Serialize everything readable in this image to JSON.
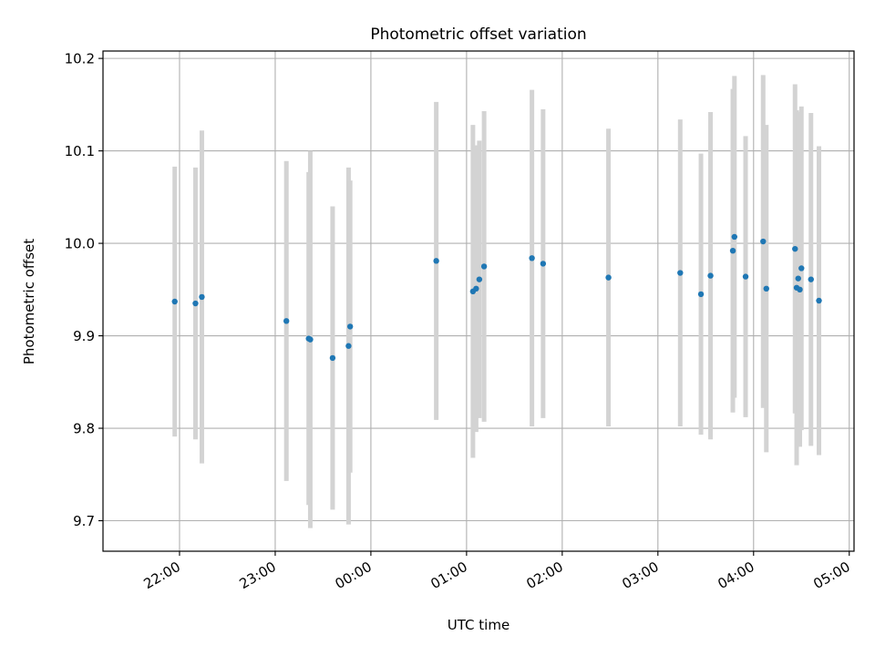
{
  "chart_data": {
    "type": "scatter",
    "title": "Photometric offset variation",
    "xlabel": "UTC time",
    "ylabel": "Photometric offset",
    "x_ticks": [
      {
        "x": "2000-01-01T22:00:00Z",
        "label": "22:00"
      },
      {
        "x": "2000-01-01T23:00:00Z",
        "label": "23:00"
      },
      {
        "x": "2000-01-02T00:00:00Z",
        "label": "00:00"
      },
      {
        "x": "2000-01-02T01:00:00Z",
        "label": "01:00"
      },
      {
        "x": "2000-01-02T02:00:00Z",
        "label": "02:00"
      },
      {
        "x": "2000-01-02T03:00:00Z",
        "label": "03:00"
      },
      {
        "x": "2000-01-02T04:00:00Z",
        "label": "04:00"
      },
      {
        "x": "2000-01-02T05:00:00Z",
        "label": "05:00"
      }
    ],
    "y_ticks": [
      {
        "y": 9.7,
        "label": "9.7"
      },
      {
        "y": 9.8,
        "label": "9.8"
      },
      {
        "y": 9.9,
        "label": "9.9"
      },
      {
        "y": 10.0,
        "label": "10.0"
      },
      {
        "y": 10.1,
        "label": "10.1"
      },
      {
        "y": 10.2,
        "label": "10.2"
      }
    ],
    "xlim": [
      "2000-01-01T21:12:00Z",
      "2000-01-02T05:03:00Z"
    ],
    "ylim": [
      9.667,
      10.208
    ],
    "grid": true,
    "point_color": "#1f77b4",
    "errorbar_color": "#d3d3d3",
    "points": [
      {
        "x": "2000-01-01T21:57:00Z",
        "y": 9.937,
        "err": 0.146
      },
      {
        "x": "2000-01-01T22:10:00Z",
        "y": 9.935,
        "err": 0.147
      },
      {
        "x": "2000-01-01T22:14:00Z",
        "y": 9.942,
        "err": 0.18
      },
      {
        "x": "2000-01-01T23:07:00Z",
        "y": 9.916,
        "err": 0.173
      },
      {
        "x": "2000-01-01T23:21:00Z",
        "y": 9.897,
        "err": 0.18
      },
      {
        "x": "2000-01-01T23:22:00Z",
        "y": 9.896,
        "err": 0.204
      },
      {
        "x": "2000-01-01T23:36:00Z",
        "y": 9.876,
        "err": 0.164
      },
      {
        "x": "2000-01-01T23:46:00Z",
        "y": 9.889,
        "err": 0.193
      },
      {
        "x": "2000-01-01T23:47:00Z",
        "y": 9.91,
        "err": 0.158
      },
      {
        "x": "2000-01-02T00:41:00Z",
        "y": 9.981,
        "err": 0.172
      },
      {
        "x": "2000-01-02T01:04:00Z",
        "y": 9.948,
        "err": 0.18
      },
      {
        "x": "2000-01-02T01:06:00Z",
        "y": 9.951,
        "err": 0.155
      },
      {
        "x": "2000-01-02T01:08:00Z",
        "y": 9.961,
        "err": 0.15
      },
      {
        "x": "2000-01-02T01:11:00Z",
        "y": 9.975,
        "err": 0.168
      },
      {
        "x": "2000-01-02T01:41:00Z",
        "y": 9.984,
        "err": 0.182
      },
      {
        "x": "2000-01-02T01:48:00Z",
        "y": 9.978,
        "err": 0.167
      },
      {
        "x": "2000-01-02T02:29:00Z",
        "y": 9.963,
        "err": 0.161
      },
      {
        "x": "2000-01-02T03:14:00Z",
        "y": 9.968,
        "err": 0.166
      },
      {
        "x": "2000-01-02T03:27:00Z",
        "y": 9.945,
        "err": 0.152
      },
      {
        "x": "2000-01-02T03:33:00Z",
        "y": 9.965,
        "err": 0.177
      },
      {
        "x": "2000-01-02T03:47:00Z",
        "y": 9.992,
        "err": 0.175
      },
      {
        "x": "2000-01-02T03:48:00Z",
        "y": 10.007,
        "err": 0.174
      },
      {
        "x": "2000-01-02T03:55:00Z",
        "y": 9.964,
        "err": 0.152
      },
      {
        "x": "2000-01-02T04:06:00Z",
        "y": 10.002,
        "err": 0.18
      },
      {
        "x": "2000-01-02T04:08:00Z",
        "y": 9.951,
        "err": 0.177
      },
      {
        "x": "2000-01-02T04:26:00Z",
        "y": 9.994,
        "err": 0.178
      },
      {
        "x": "2000-01-02T04:27:00Z",
        "y": 9.952,
        "err": 0.192
      },
      {
        "x": "2000-01-02T04:28:00Z",
        "y": 9.962,
        "err": 0.18
      },
      {
        "x": "2000-01-02T04:29:00Z",
        "y": 9.95,
        "err": 0.17
      },
      {
        "x": "2000-01-02T04:30:00Z",
        "y": 9.973,
        "err": 0.175
      },
      {
        "x": "2000-01-02T04:36:00Z",
        "y": 9.961,
        "err": 0.18
      },
      {
        "x": "2000-01-02T04:41:00Z",
        "y": 9.938,
        "err": 0.167
      }
    ]
  }
}
